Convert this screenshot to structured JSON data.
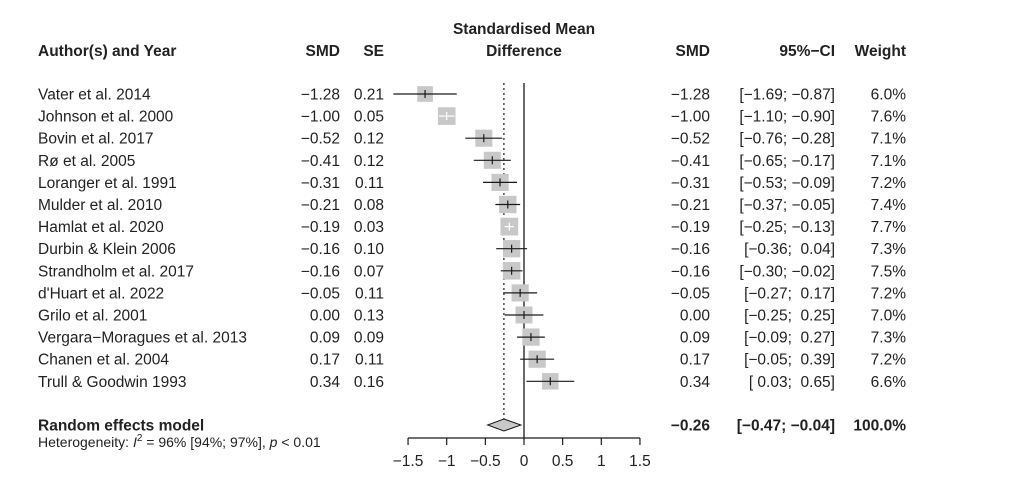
{
  "chart_data": {
    "type": "forest",
    "title": "Standardised Mean Difference",
    "title_lines": [
      "Standardised Mean",
      "Difference"
    ],
    "headers": {
      "study": "Author(s) and Year",
      "smd": "SMD",
      "se": "SE",
      "smd_right": "SMD",
      "ci": "95%−CI",
      "weight": "Weight"
    },
    "xlim": [
      -1.5,
      1.5
    ],
    "xticks": [
      -1.5,
      -1,
      -0.5,
      0,
      0.5,
      1,
      1.5
    ],
    "xtick_labels": [
      "−1.5",
      "−1",
      "−0.5",
      "0",
      "0.5",
      "1",
      "1.5"
    ],
    "reference_line": 0,
    "studies": [
      {
        "name": "Vater et al. 2014",
        "smd": -1.28,
        "se": 0.21,
        "lower": -1.69,
        "upper": -0.87,
        "weight": 6.0,
        "smd_text": "−1.28",
        "se_text": "0.21",
        "ci_text": "[−1.69; −0.87]",
        "weight_text": "6.0%"
      },
      {
        "name": "Johnson et al. 2000",
        "smd": -1.0,
        "se": 0.05,
        "lower": -1.1,
        "upper": -0.9,
        "weight": 7.6,
        "smd_text": "−1.00",
        "se_text": "0.05",
        "ci_text": "[−1.10; −0.90]",
        "weight_text": "7.6%"
      },
      {
        "name": "Bovin et al. 2017",
        "smd": -0.52,
        "se": 0.12,
        "lower": -0.76,
        "upper": -0.28,
        "weight": 7.1,
        "smd_text": "−0.52",
        "se_text": "0.12",
        "ci_text": "[−0.76; −0.28]",
        "weight_text": "7.1%"
      },
      {
        "name": "Rø et al. 2005",
        "smd": -0.41,
        "se": 0.12,
        "lower": -0.65,
        "upper": -0.17,
        "weight": 7.1,
        "smd_text": "−0.41",
        "se_text": "0.12",
        "ci_text": "[−0.65; −0.17]",
        "weight_text": "7.1%"
      },
      {
        "name": "Loranger et al. 1991",
        "smd": -0.31,
        "se": 0.11,
        "lower": -0.53,
        "upper": -0.09,
        "weight": 7.2,
        "smd_text": "−0.31",
        "se_text": "0.11",
        "ci_text": "[−0.53; −0.09]",
        "weight_text": "7.2%"
      },
      {
        "name": "Mulder et al. 2010",
        "smd": -0.21,
        "se": 0.08,
        "lower": -0.37,
        "upper": -0.05,
        "weight": 7.4,
        "smd_text": "−0.21",
        "se_text": "0.08",
        "ci_text": "[−0.37; −0.05]",
        "weight_text": "7.4%"
      },
      {
        "name": "Hamlat et al. 2020",
        "smd": -0.19,
        "se": 0.03,
        "lower": -0.25,
        "upper": -0.13,
        "weight": 7.7,
        "smd_text": "−0.19",
        "se_text": "0.03",
        "ci_text": "[−0.25; −0.13]",
        "weight_text": "7.7%"
      },
      {
        "name": "Durbin & Klein 2006",
        "smd": -0.16,
        "se": 0.1,
        "lower": -0.36,
        "upper": 0.04,
        "weight": 7.3,
        "smd_text": "−0.16",
        "se_text": "0.10",
        "ci_text": "[−0.36;  0.04]",
        "weight_text": "7.3%"
      },
      {
        "name": "Strandholm et al. 2017",
        "smd": -0.16,
        "se": 0.07,
        "lower": -0.3,
        "upper": -0.02,
        "weight": 7.5,
        "smd_text": "−0.16",
        "se_text": "0.07",
        "ci_text": "[−0.30; −0.02]",
        "weight_text": "7.5%"
      },
      {
        "name": "d'Huart et al. 2022",
        "smd": -0.05,
        "se": 0.11,
        "lower": -0.27,
        "upper": 0.17,
        "weight": 7.2,
        "smd_text": "−0.05",
        "se_text": "0.11",
        "ci_text": "[−0.27;  0.17]",
        "weight_text": "7.2%"
      },
      {
        "name": "Grilo et al. 2001",
        "smd": 0.0,
        "se": 0.13,
        "lower": -0.25,
        "upper": 0.25,
        "weight": 7.0,
        "smd_text": "0.00",
        "se_text": "0.13",
        "ci_text": "[−0.25;  0.25]",
        "weight_text": "7.0%"
      },
      {
        "name": "Vergara−Moragues et al. 2013",
        "smd": 0.09,
        "se": 0.09,
        "lower": -0.09,
        "upper": 0.27,
        "weight": 7.3,
        "smd_text": "0.09",
        "se_text": "0.09",
        "ci_text": "[−0.09;  0.27]",
        "weight_text": "7.3%"
      },
      {
        "name": "Chanen et al. 2004",
        "smd": 0.17,
        "se": 0.11,
        "lower": -0.05,
        "upper": 0.39,
        "weight": 7.2,
        "smd_text": "0.17",
        "se_text": "0.11",
        "ci_text": "[−0.05;  0.39]",
        "weight_text": "7.2%"
      },
      {
        "name": "Trull & Goodwin 1993",
        "smd": 0.34,
        "se": 0.16,
        "lower": 0.03,
        "upper": 0.65,
        "weight": 6.6,
        "smd_text": "0.34",
        "se_text": "0.16",
        "ci_text": "[ 0.03;  0.65]",
        "weight_text": "6.6%"
      }
    ],
    "pooled": {
      "label": "Random effects model",
      "smd": -0.26,
      "lower": -0.47,
      "upper": -0.04,
      "weight": 100.0,
      "smd_text": "−0.26",
      "ci_text": "[−0.47; −0.04]",
      "weight_text": "100.0%"
    },
    "heterogeneity": {
      "prefix": "Heterogeneity: ",
      "stat_symbol": "I",
      "superscript": "2",
      "value_text": " = 96% [94%; 97%], ",
      "p_symbol": "p",
      "p_text": " < 0.01"
    },
    "colors": {
      "square": "#c8c8c8",
      "line": "#1a1a1a",
      "diamond": "#c8c8c8",
      "text": "#222222"
    }
  }
}
